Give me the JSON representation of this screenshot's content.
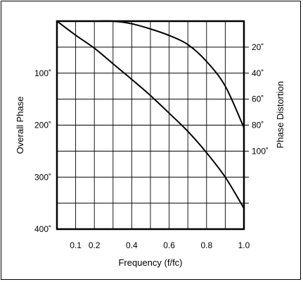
{
  "chart_data": {
    "type": "line",
    "xlabel": "Frequency (f/fc)",
    "ylabel_left": "Overall Phase",
    "ylabel_right": "Phase Distortion",
    "x_ticks": [
      "0.1",
      "0.2",
      "0.4",
      "0.6",
      "0.8",
      "1.0"
    ],
    "x_tick_values": [
      0.1,
      0.2,
      0.4,
      0.6,
      0.8,
      1.0
    ],
    "xlim": [
      0.0,
      1.0
    ],
    "y_left_ticks": [
      "100˚",
      "200˚",
      "300˚",
      "400˚"
    ],
    "y_left_tick_values": [
      100,
      200,
      300,
      400
    ],
    "y_left_lim": [
      0,
      400
    ],
    "y_left_inverted": true,
    "y_right_ticks": [
      "20˚",
      "40˚",
      "60˚",
      "80˚",
      "100˚"
    ],
    "y_right_tick_values": [
      20,
      40,
      60,
      80,
      100
    ],
    "y_right_lim": [
      0,
      160
    ],
    "y_right_inverted": true,
    "grid": true,
    "series": [
      {
        "axis": "left",
        "x": [
          0.0,
          0.1,
          0.2,
          0.3,
          0.4,
          0.5,
          0.6,
          0.7,
          0.8,
          0.9,
          1.0
        ],
        "y": [
          0,
          27,
          52,
          82,
          112,
          143,
          177,
          212,
          253,
          300,
          360
        ]
      },
      {
        "axis": "right",
        "x": [
          0.0,
          0.1,
          0.2,
          0.3,
          0.4,
          0.5,
          0.6,
          0.7,
          0.8,
          0.9,
          1.0
        ],
        "y": [
          0,
          0,
          0,
          0,
          2,
          6,
          11,
          18,
          31,
          50,
          82
        ]
      }
    ]
  }
}
